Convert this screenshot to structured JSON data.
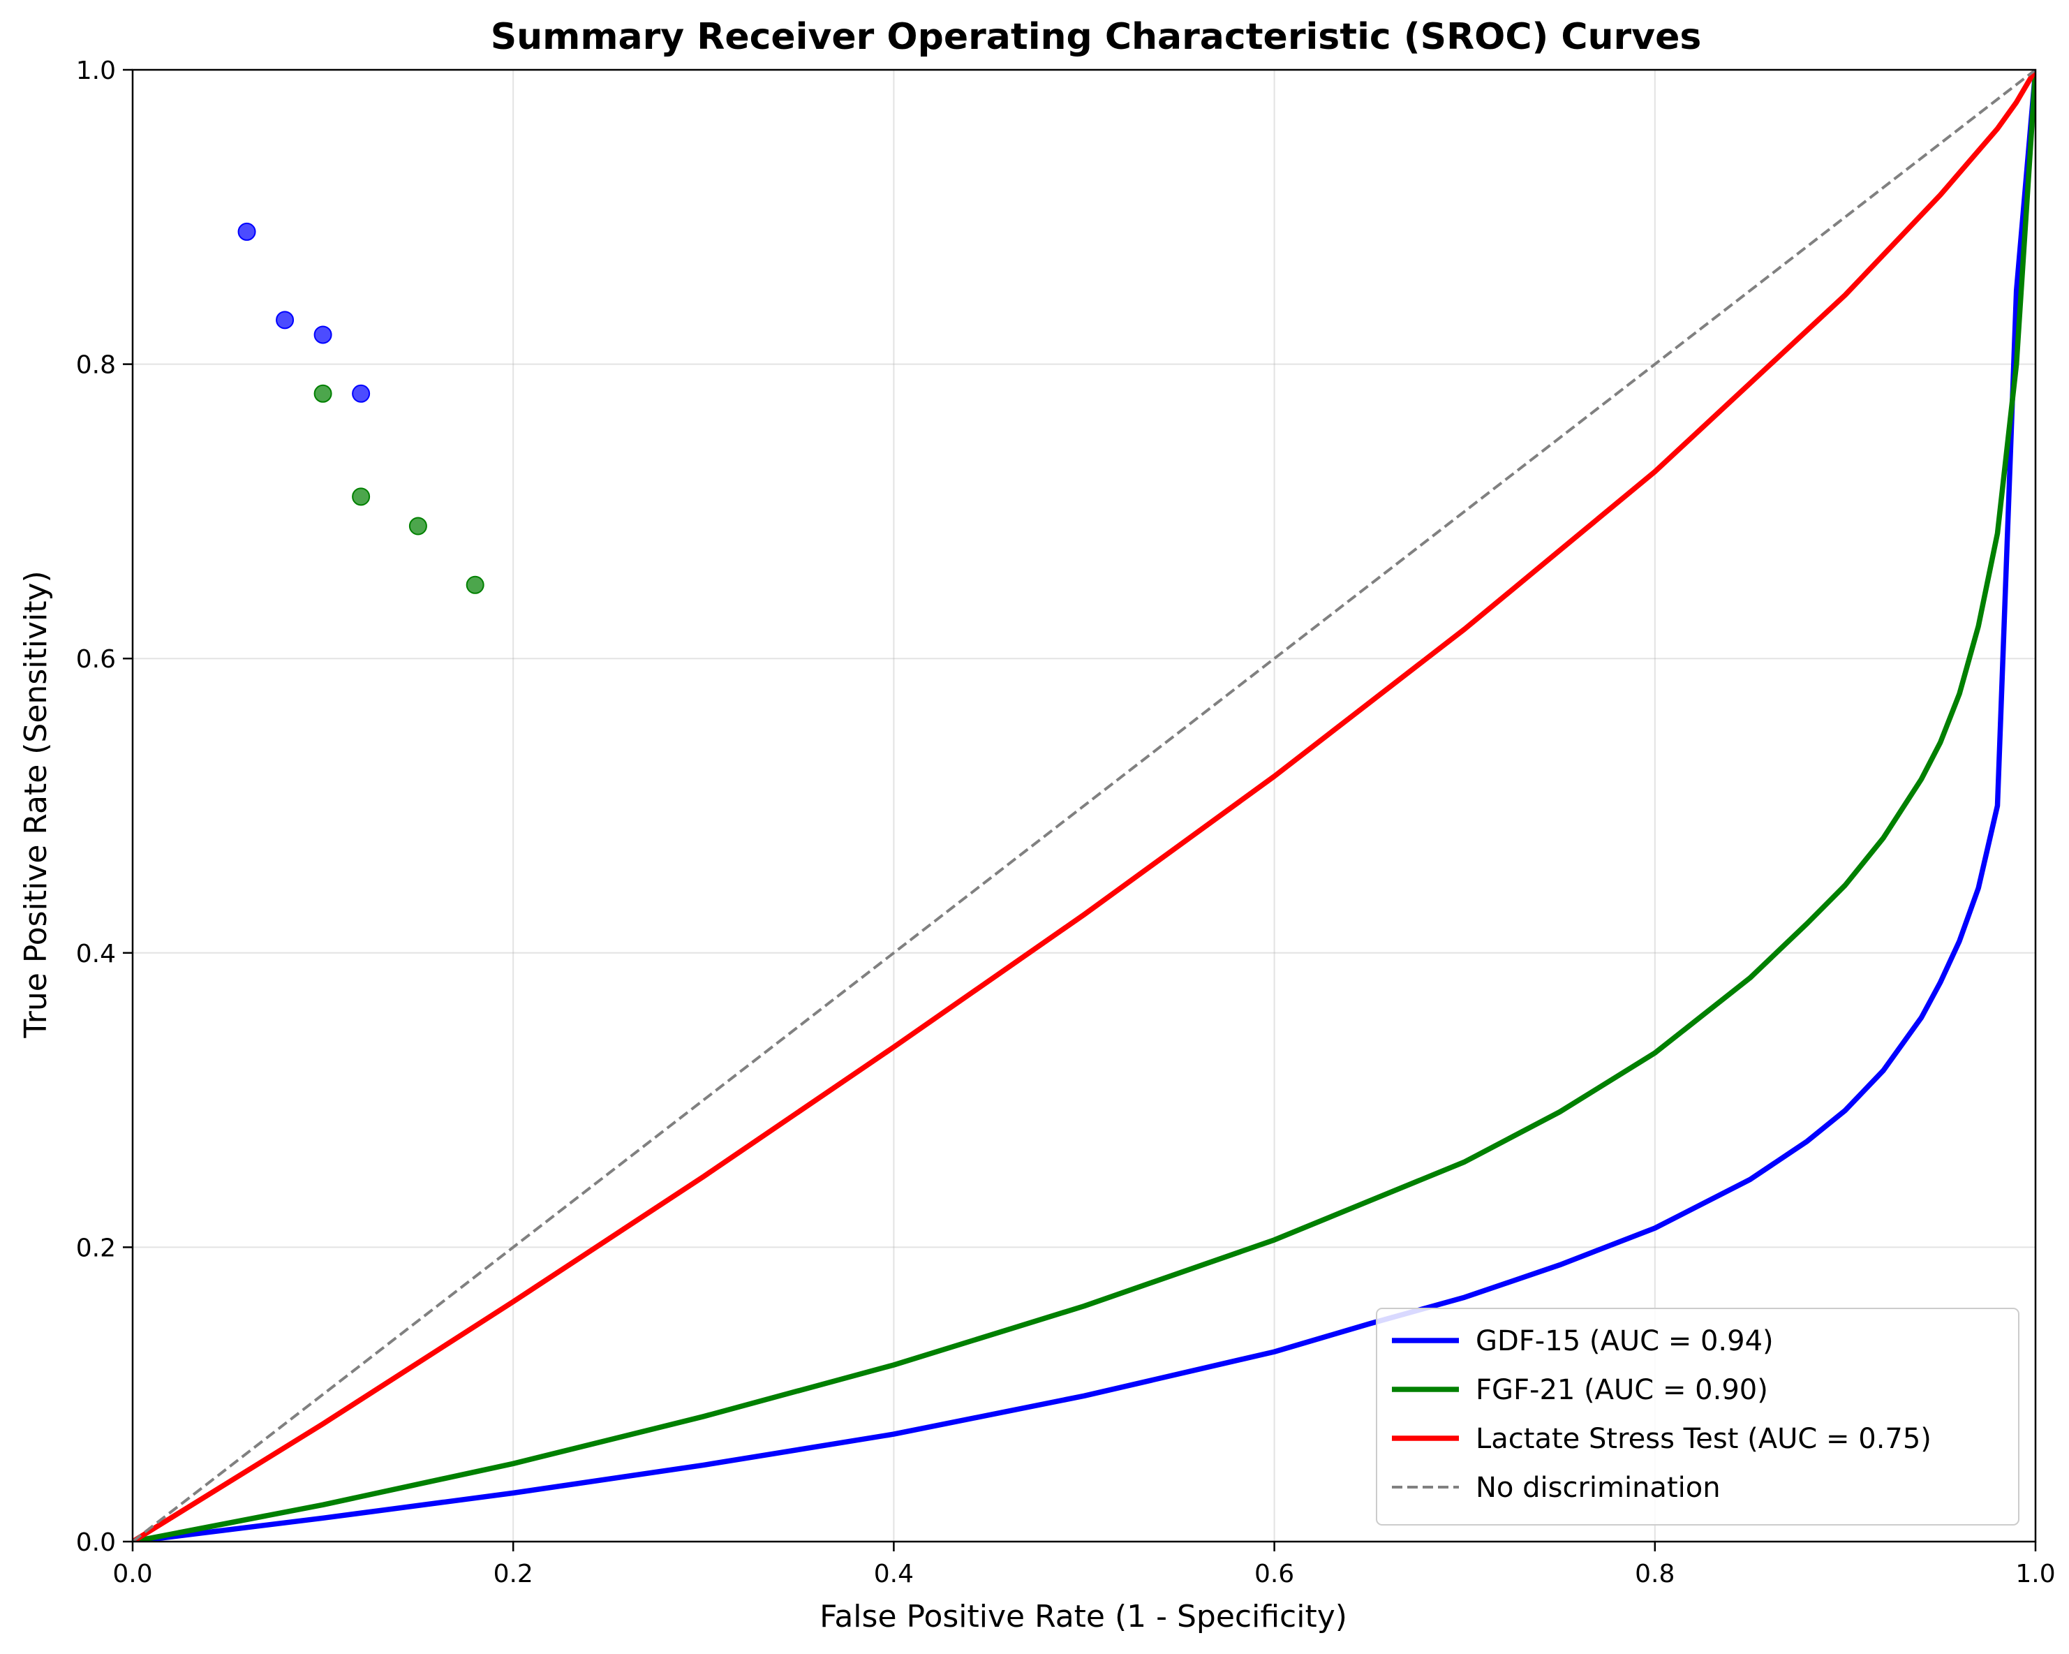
{
  "chart_data": {
    "type": "line",
    "title": "Summary Receiver Operating Characteristic (SROC) Curves",
    "xlabel": "False Positive Rate (1 - Specificity)",
    "ylabel": "True Positive Rate (Sensitivity)",
    "xlim": [
      0,
      1
    ],
    "ylim": [
      0,
      1
    ],
    "x_ticks": [
      "0.0",
      "0.2",
      "0.4",
      "0.6",
      "0.8",
      "1.0"
    ],
    "y_ticks": [
      "0.0",
      "0.2",
      "0.4",
      "0.6",
      "0.8",
      "1.0"
    ],
    "grid": true,
    "legend_position": "bottom-right",
    "series": [
      {
        "name": "GDF-15 (AUC = 0.94)",
        "color": "#0000ff",
        "style": "solid",
        "x": [
          0,
          0.1,
          0.2,
          0.3,
          0.4,
          0.5,
          0.6,
          0.65,
          0.7,
          0.75,
          0.8,
          0.85,
          0.88,
          0.9,
          0.92,
          0.94,
          0.95,
          0.96,
          0.97,
          0.98,
          0.99,
          1.0
        ],
        "y": [
          0,
          0.016,
          0.033,
          0.052,
          0.073,
          0.099,
          0.129,
          0.148,
          0.166,
          0.188,
          0.213,
          0.246,
          0.272,
          0.293,
          0.32,
          0.356,
          0.38,
          0.408,
          0.444,
          0.5,
          0.85,
          1.0
        ]
      },
      {
        "name": "FGF-21 (AUC = 0.90)",
        "color": "#008000",
        "style": "solid",
        "x": [
          0,
          0.1,
          0.2,
          0.3,
          0.4,
          0.5,
          0.6,
          0.7,
          0.75,
          0.8,
          0.85,
          0.88,
          0.9,
          0.92,
          0.94,
          0.95,
          0.96,
          0.97,
          0.98,
          0.99,
          1.0
        ],
        "y": [
          0,
          0.025,
          0.053,
          0.085,
          0.12,
          0.16,
          0.205,
          0.258,
          0.292,
          0.332,
          0.383,
          0.42,
          0.446,
          0.478,
          0.518,
          0.543,
          0.576,
          0.622,
          0.685,
          0.8,
          1.0
        ]
      },
      {
        "name": "Lactate Stress Test (AUC = 0.75)",
        "color": "#ff0000",
        "style": "solid",
        "x": [
          0,
          0.1,
          0.2,
          0.3,
          0.4,
          0.5,
          0.6,
          0.7,
          0.8,
          0.9,
          0.95,
          0.98,
          0.99,
          1.0
        ],
        "y": [
          0,
          0.08,
          0.163,
          0.248,
          0.336,
          0.426,
          0.52,
          0.62,
          0.727,
          0.847,
          0.915,
          0.96,
          0.978,
          1.0
        ]
      },
      {
        "name": "No discrimination",
        "color": "#808080",
        "style": "dashed",
        "x": [
          0,
          1
        ],
        "y": [
          0,
          1
        ]
      }
    ],
    "points": [
      {
        "color": "#0000ff",
        "x": [
          0.06,
          0.08,
          0.1,
          0.12
        ],
        "y": [
          0.89,
          0.83,
          0.82,
          0.78
        ]
      },
      {
        "color": "#008000",
        "x": [
          0.1,
          0.12,
          0.15,
          0.18
        ],
        "y": [
          0.78,
          0.71,
          0.69,
          0.65
        ]
      }
    ]
  }
}
